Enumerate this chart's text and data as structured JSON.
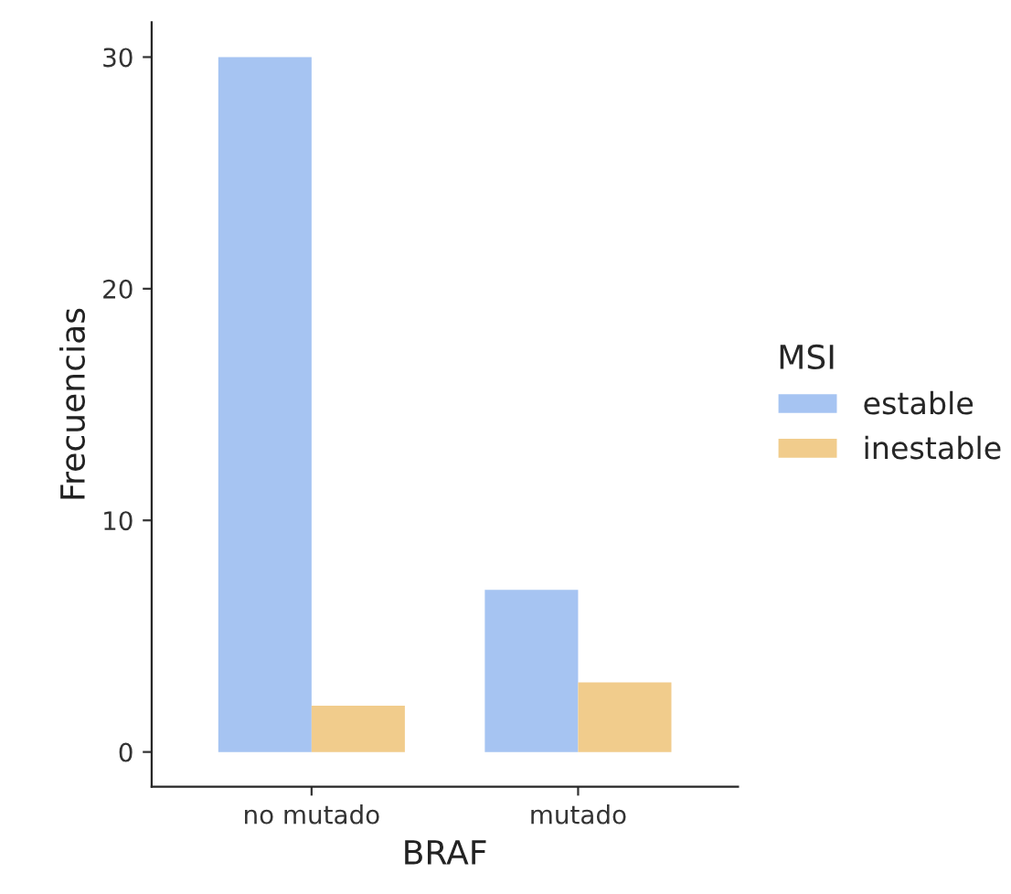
{
  "chart_data": {
    "type": "bar",
    "xlabel": "BRAF",
    "ylabel": "Frecuencias",
    "legend_title": "MSI",
    "categories": [
      "no mutado",
      "mutado"
    ],
    "series": [
      {
        "name": "estable",
        "color": "#a6c4f2",
        "values": [
          30,
          7
        ]
      },
      {
        "name": "inestable",
        "color": "#f1cc8c",
        "values": [
          2,
          3
        ]
      }
    ],
    "ylim": [
      -1.5,
      31.5
    ],
    "yticks": [
      0,
      10,
      20,
      30
    ],
    "grid": false,
    "legend": "right"
  }
}
